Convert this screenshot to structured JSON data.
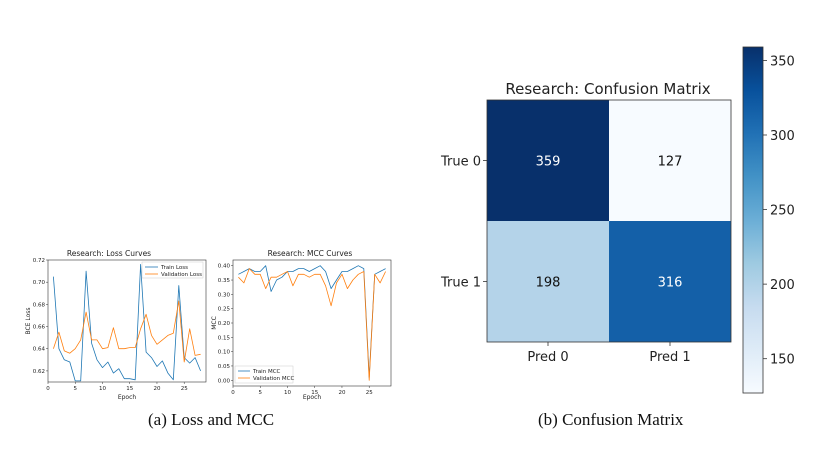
{
  "figure": {
    "captions": [
      "(a) Loss and MCC",
      "(b) Confusion Matrix"
    ]
  },
  "chart_data": [
    {
      "type": "line",
      "title": "Research: Loss Curves",
      "xlabel": "Epoch",
      "ylabel": "BCE Loss",
      "xlim": [
        0,
        29
      ],
      "ylim": [
        0.61,
        0.72
      ],
      "xticks": [
        0,
        5,
        10,
        15,
        20,
        25
      ],
      "yticks": [
        0.62,
        0.64,
        0.66,
        0.68,
        0.7,
        0.72
      ],
      "legend": "top-right",
      "x": [
        1,
        2,
        3,
        4,
        5,
        6,
        7,
        8,
        9,
        10,
        11,
        12,
        13,
        14,
        15,
        16,
        17,
        18,
        19,
        20,
        21,
        22,
        23,
        24,
        25,
        26,
        27,
        28
      ],
      "series": [
        {
          "name": "Train Loss",
          "color": "#1f77b4",
          "values": [
            0.705,
            0.64,
            0.63,
            0.628,
            0.611,
            0.611,
            0.71,
            0.645,
            0.63,
            0.623,
            0.628,
            0.618,
            0.622,
            0.613,
            0.613,
            0.612,
            0.716,
            0.637,
            0.632,
            0.624,
            0.629,
            0.618,
            0.612,
            0.697,
            0.632,
            0.627,
            0.632,
            0.62
          ]
        },
        {
          "name": "Validation Loss",
          "color": "#ff7f0e",
          "values": [
            0.64,
            0.655,
            0.638,
            0.636,
            0.64,
            0.648,
            0.673,
            0.648,
            0.648,
            0.64,
            0.641,
            0.659,
            0.64,
            0.64,
            0.641,
            0.641,
            0.658,
            0.671,
            0.652,
            0.644,
            0.648,
            0.652,
            0.654,
            0.683,
            0.628,
            0.658,
            0.634,
            0.635
          ]
        }
      ]
    },
    {
      "type": "line",
      "title": "Research: MCC Curves",
      "xlabel": "Epoch",
      "ylabel": "MCC",
      "xlim": [
        0,
        29
      ],
      "ylim": [
        -0.02,
        0.42
      ],
      "xticks": [
        0,
        5,
        10,
        15,
        20,
        25
      ],
      "yticks": [
        0.0,
        0.05,
        0.1,
        0.15,
        0.2,
        0.25,
        0.3,
        0.35,
        0.4
      ],
      "legend": "bottom-left",
      "x": [
        1,
        2,
        3,
        4,
        5,
        6,
        7,
        8,
        9,
        10,
        11,
        12,
        13,
        14,
        15,
        16,
        17,
        18,
        19,
        20,
        21,
        22,
        23,
        24,
        25,
        26,
        27,
        28
      ],
      "series": [
        {
          "name": "Train MCC",
          "color": "#1f77b4",
          "values": [
            0.37,
            0.38,
            0.39,
            0.38,
            0.38,
            0.4,
            0.31,
            0.35,
            0.36,
            0.38,
            0.38,
            0.39,
            0.39,
            0.38,
            0.39,
            0.4,
            0.38,
            0.32,
            0.35,
            0.38,
            0.38,
            0.39,
            0.4,
            0.39,
            0.01,
            0.37,
            0.38,
            0.39
          ]
        },
        {
          "name": "Validation MCC",
          "color": "#ff7f0e",
          "values": [
            0.36,
            0.34,
            0.39,
            0.37,
            0.37,
            0.32,
            0.36,
            0.36,
            0.37,
            0.38,
            0.33,
            0.37,
            0.37,
            0.36,
            0.37,
            0.37,
            0.33,
            0.26,
            0.34,
            0.37,
            0.32,
            0.35,
            0.37,
            0.38,
            0.0,
            0.37,
            0.34,
            0.38
          ]
        }
      ]
    },
    {
      "type": "heatmap",
      "title": "Research: Confusion Matrix",
      "row_labels": [
        "True 0",
        "True 1"
      ],
      "col_labels": [
        "Pred 0",
        "Pred 1"
      ],
      "values": [
        [
          359,
          127
        ],
        [
          198,
          316
        ]
      ],
      "colormap": "Blues",
      "colorbar": {
        "min": 127,
        "max": 359,
        "ticks": [
          150,
          200,
          250,
          300,
          350
        ]
      }
    }
  ]
}
